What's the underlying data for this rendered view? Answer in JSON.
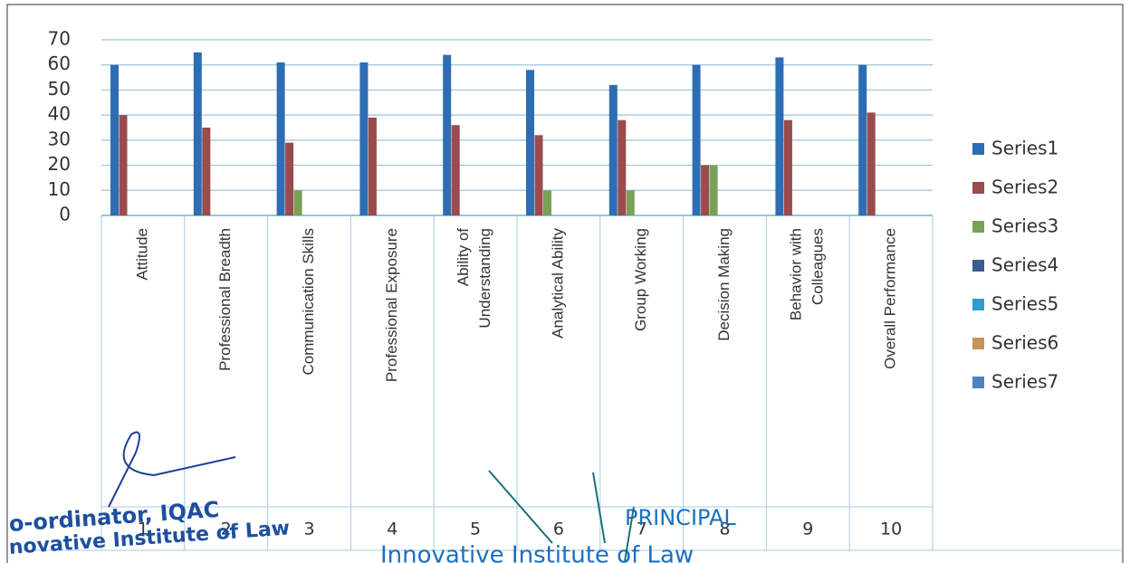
{
  "chart_data": {
    "type": "bar",
    "categories": [
      "Attitude",
      "Professional Breadth",
      "Communication Skills",
      "Professional Exposure",
      "Ability of Understanding",
      "Analytical Ability",
      "Group Working",
      "Decision Making",
      "Behavior with Colleagues",
      "Overall Performance"
    ],
    "index_labels": [
      1,
      2,
      3,
      4,
      5,
      6,
      7,
      8,
      9,
      10
    ],
    "series": [
      {
        "name": "Series1",
        "color": "#2d6db3",
        "values": [
          60,
          65,
          61,
          61,
          64,
          58,
          52,
          60,
          63,
          60
        ]
      },
      {
        "name": "Series2",
        "color": "#9a4b4b",
        "values": [
          40,
          35,
          29,
          39,
          36,
          32,
          38,
          20,
          38,
          41
        ]
      },
      {
        "name": "Series3",
        "color": "#78a057",
        "values": [
          null,
          null,
          10,
          null,
          null,
          10,
          10,
          20,
          null,
          null
        ]
      },
      {
        "name": "Series4",
        "color": "#3b5c8e",
        "values": [
          null,
          null,
          null,
          null,
          null,
          null,
          null,
          null,
          null,
          null
        ]
      },
      {
        "name": "Series5",
        "color": "#2f9bd2",
        "values": [
          null,
          null,
          null,
          null,
          null,
          null,
          null,
          null,
          null,
          null
        ]
      },
      {
        "name": "Series6",
        "color": "#c8925c",
        "values": [
          null,
          null,
          null,
          null,
          null,
          null,
          null,
          null,
          null,
          null
        ]
      },
      {
        "name": "Series7",
        "color": "#4c82c2",
        "values": [
          null,
          null,
          null,
          null,
          null,
          null,
          null,
          null,
          null,
          null
        ]
      }
    ],
    "ylim": [
      0,
      70
    ],
    "yticks": [
      0,
      10,
      20,
      30,
      40,
      50,
      60,
      70
    ],
    "grid": true,
    "legend": "right",
    "annotations": [
      "o-ordinator, IQAC",
      "novative Institute of Law",
      "PRINCIPAL",
      "Innovative Institute of Law"
    ]
  }
}
